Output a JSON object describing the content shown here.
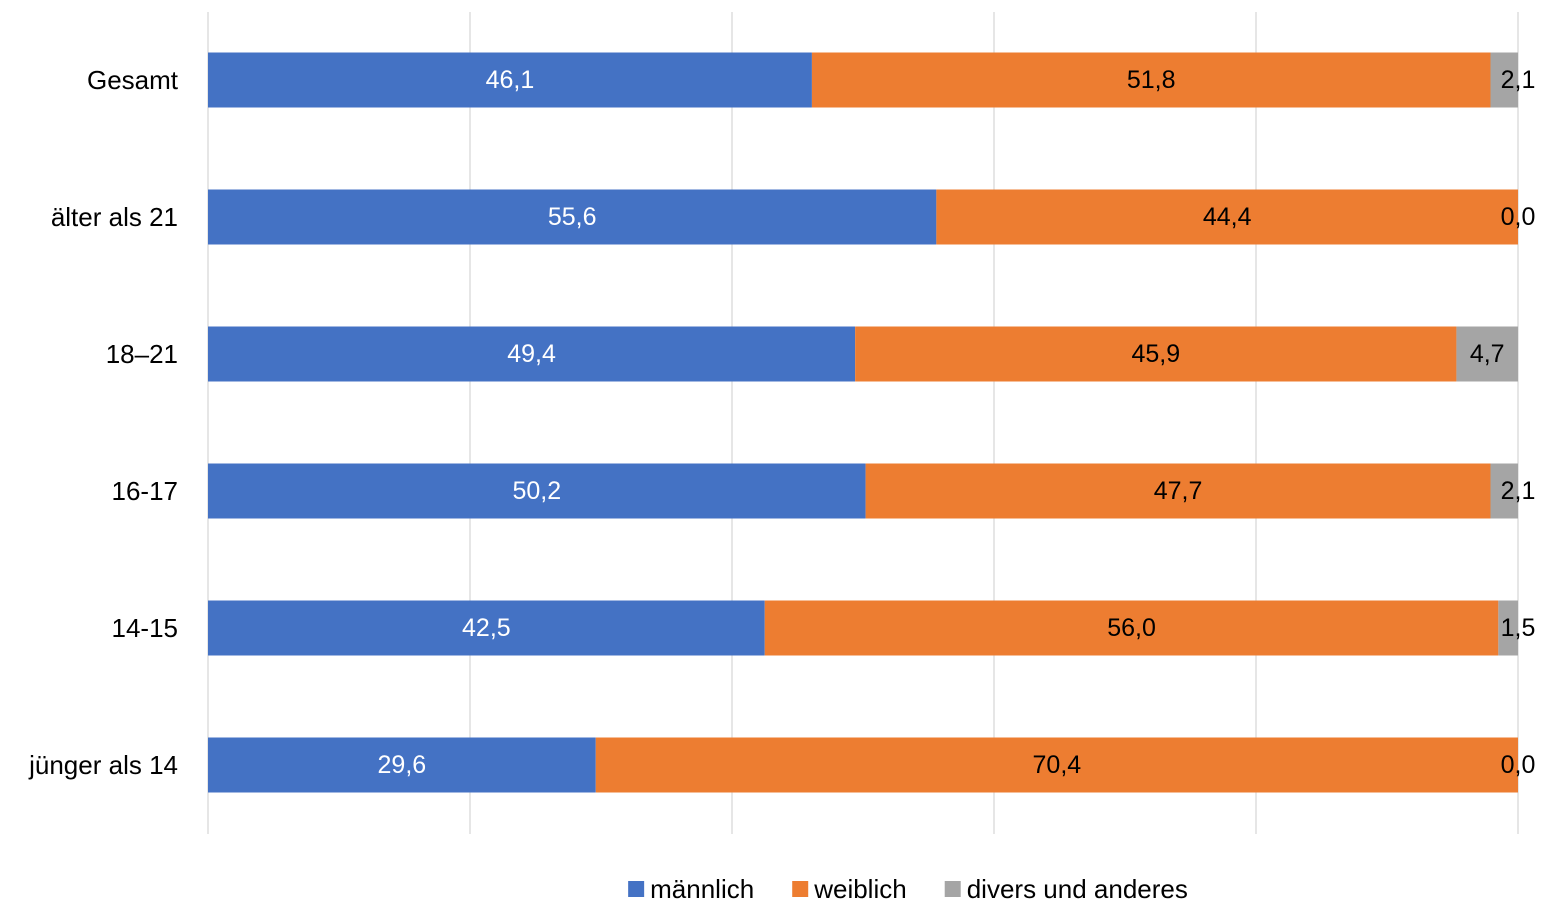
{
  "chart_data": {
    "type": "bar",
    "orientation": "horizontal",
    "stacked": "percent",
    "categories": [
      "Gesamt",
      "älter als 21",
      "18–21",
      "16-17",
      "14-15",
      "jünger als 14"
    ],
    "series": [
      {
        "name": "männlich",
        "color": "#4472C4",
        "values": [
          46.1,
          55.6,
          49.4,
          50.2,
          42.5,
          29.6
        ],
        "labels": [
          "46,1",
          "55,6",
          "49,4",
          "50,2",
          "42,5",
          "29,6"
        ],
        "label_color": "#ffffff"
      },
      {
        "name": "weiblich",
        "color": "#ED7D31",
        "values": [
          51.8,
          44.4,
          45.9,
          47.7,
          56.0,
          70.4
        ],
        "labels": [
          "51,8",
          "44,4",
          "45,9",
          "47,7",
          "56,0",
          "70,4"
        ],
        "label_color": "#000000"
      },
      {
        "name": "divers und anderes",
        "color": "#A5A5A5",
        "values": [
          2.1,
          0.0,
          4.7,
          2.1,
          1.5,
          0.0
        ],
        "labels": [
          "2,1",
          "0,0",
          "4,7",
          "2,1",
          "1,5",
          "0,0"
        ],
        "label_color": "#000000"
      }
    ],
    "xlim": [
      0,
      100
    ],
    "grid": true,
    "legend": "bottom",
    "gridline_color": "#D9D9D9"
  }
}
